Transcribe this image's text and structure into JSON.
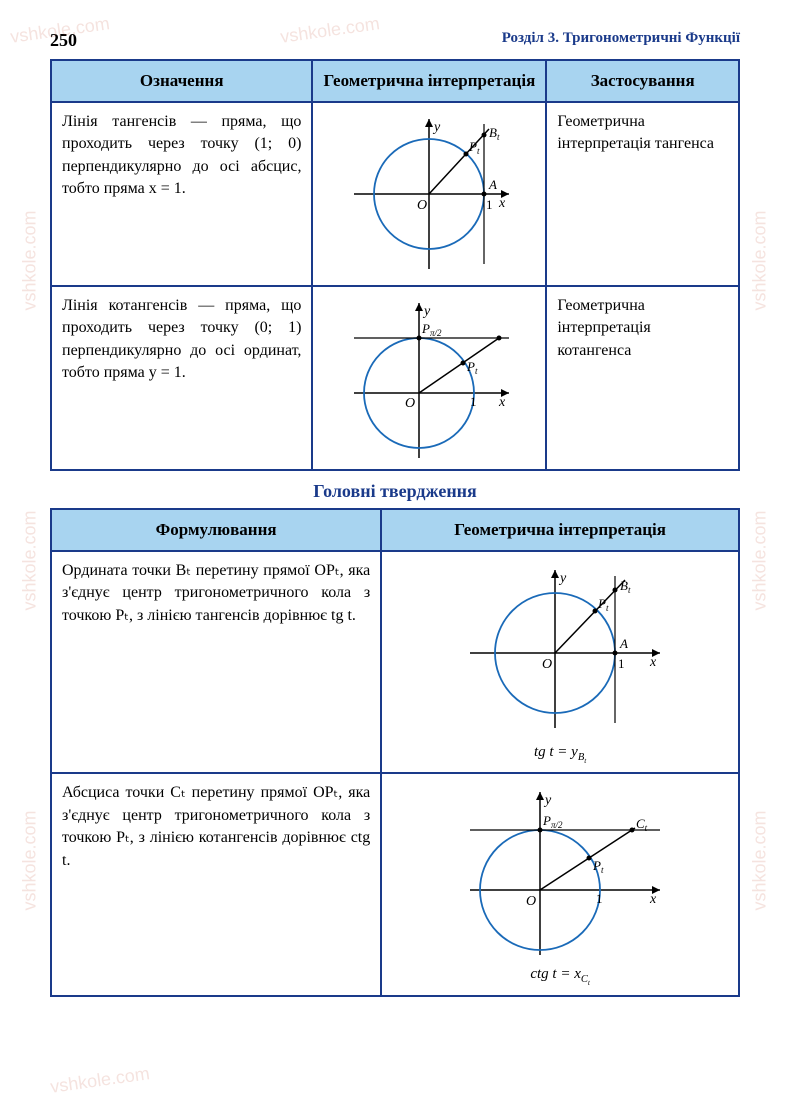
{
  "page_number": "250",
  "chapter": "Розділ 3. Тригонометричні Функції",
  "watermark_text": "vshkole.com",
  "table1": {
    "headers": [
      "Означення",
      "Геометрична інтерпретація",
      "Застосування"
    ],
    "rows": [
      {
        "definition": "Лінія тангенсів — пряма, що проходить через точку (1; 0) перпендикулярно до осі абсцис, тобто пряма x = 1.",
        "application": "Геометрична інтерпретація тангенса"
      },
      {
        "definition": "Лінія котангенсів — пряма, що проходить через точку (0; 1) перпендикулярно до осі ординат, тобто пряма y = 1.",
        "application": "Геометрична інтерпретація котангенса"
      }
    ]
  },
  "section_title": "Головні твердження",
  "table2": {
    "headers": [
      "Формулювання",
      "Геометрична інтерпретація"
    ],
    "rows": [
      {
        "statement": "Ордината точки Bₜ перетину прямої OPₜ, яка з'єднує центр тригонометричного кола з точкою Pₜ, з лінією тангенсів дорівнює tg t.",
        "formula_html": "tg <i>t</i> = <i>y</i><sub>B<sub>t</sub></sub>"
      },
      {
        "statement": "Абсциса точки Cₜ перетину прямої OPₜ, яка з'єднує центр тригонометричного кола з точкою Pₜ, з лінією котангенсів дорівнює ctg t.",
        "formula_html": "ctg <i>t</i> = <i>x</i><sub>C<sub>t</sub></sub>"
      }
    ]
  },
  "diagram_style": {
    "circle_color": "#1a6ab8",
    "axis_color": "#000000",
    "line_color": "#000000",
    "point_color": "#000000",
    "label_font": "italic 13px serif",
    "stroke_width": 1.5
  }
}
